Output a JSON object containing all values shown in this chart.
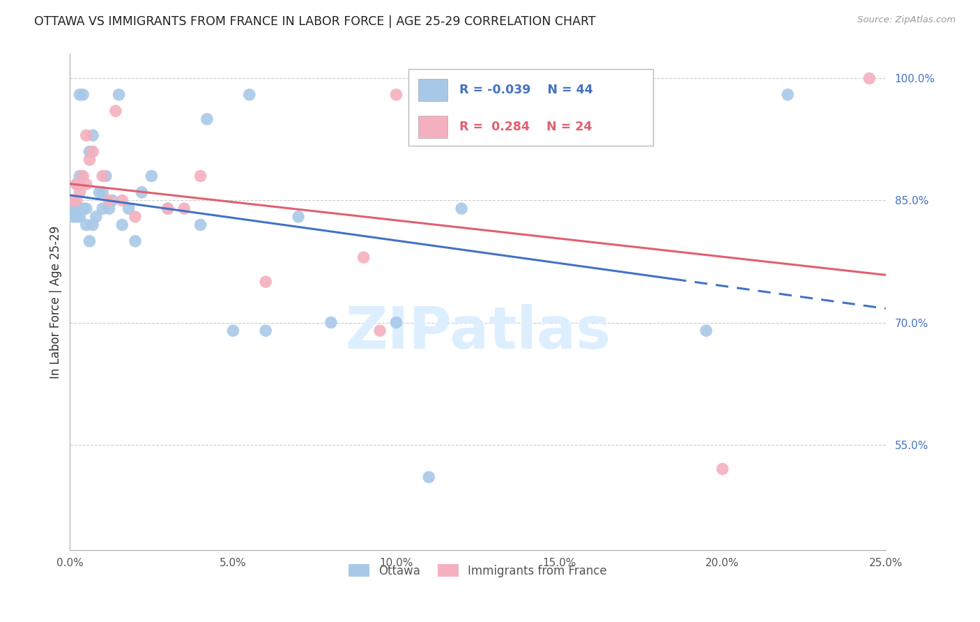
{
  "title": "OTTAWA VS IMMIGRANTS FROM FRANCE IN LABOR FORCE | AGE 25-29 CORRELATION CHART",
  "source": "Source: ZipAtlas.com",
  "ylabel": "In Labor Force | Age 25-29",
  "xlabel_ticks": [
    "0.0%",
    "5.0%",
    "10.0%",
    "15.0%",
    "20.0%",
    "25.0%"
  ],
  "xlabel_vals": [
    0.0,
    0.05,
    0.1,
    0.15,
    0.2,
    0.25
  ],
  "ylabel_ticks": [
    "100.0%",
    "85.0%",
    "70.0%",
    "55.0%"
  ],
  "ylabel_vals": [
    1.0,
    0.85,
    0.7,
    0.55
  ],
  "xlim": [
    0.0,
    0.25
  ],
  "ylim": [
    0.42,
    1.03
  ],
  "ottawa_R": -0.039,
  "ottawa_N": 44,
  "france_R": 0.284,
  "france_N": 24,
  "ottawa_color": "#a8c8e8",
  "france_color": "#f4b0be",
  "trend_ottawa_color": "#4472c4",
  "trend_france_color": "#e06070",
  "watermark_color": "#ddeeff",
  "ottawa_x": [
    0.001,
    0.001,
    0.001,
    0.002,
    0.002,
    0.002,
    0.003,
    0.003,
    0.003,
    0.003,
    0.004,
    0.004,
    0.005,
    0.005,
    0.006,
    0.006,
    0.007,
    0.007,
    0.008,
    0.009,
    0.01,
    0.01,
    0.011,
    0.012,
    0.013,
    0.015,
    0.016,
    0.018,
    0.02,
    0.022,
    0.025,
    0.03,
    0.04,
    0.042,
    0.05,
    0.055,
    0.06,
    0.07,
    0.08,
    0.1,
    0.11,
    0.12,
    0.195,
    0.22
  ],
  "ottawa_y": [
    0.83,
    0.84,
    0.85,
    0.87,
    0.84,
    0.83,
    0.98,
    0.88,
    0.83,
    0.84,
    0.98,
    0.84,
    0.84,
    0.82,
    0.8,
    0.91,
    0.82,
    0.93,
    0.83,
    0.86,
    0.86,
    0.84,
    0.88,
    0.84,
    0.85,
    0.98,
    0.82,
    0.84,
    0.8,
    0.86,
    0.88,
    0.84,
    0.82,
    0.95,
    0.69,
    0.98,
    0.69,
    0.83,
    0.7,
    0.7,
    0.51,
    0.84,
    0.69,
    0.98
  ],
  "france_x": [
    0.001,
    0.002,
    0.002,
    0.003,
    0.003,
    0.004,
    0.005,
    0.005,
    0.006,
    0.007,
    0.01,
    0.012,
    0.014,
    0.016,
    0.02,
    0.03,
    0.035,
    0.04,
    0.06,
    0.09,
    0.095,
    0.1,
    0.2,
    0.245
  ],
  "france_y": [
    0.85,
    0.87,
    0.85,
    0.87,
    0.86,
    0.88,
    0.87,
    0.93,
    0.9,
    0.91,
    0.88,
    0.85,
    0.96,
    0.85,
    0.83,
    0.84,
    0.84,
    0.88,
    0.75,
    0.78,
    0.69,
    0.98,
    0.52,
    1.0
  ],
  "legend_ottawa_label": "Ottawa",
  "legend_france_label": "Immigrants from France",
  "grid_color": "#cccccc",
  "background_color": "#ffffff",
  "trend_solid_end": 0.185,
  "trend_dash_start": 0.185
}
